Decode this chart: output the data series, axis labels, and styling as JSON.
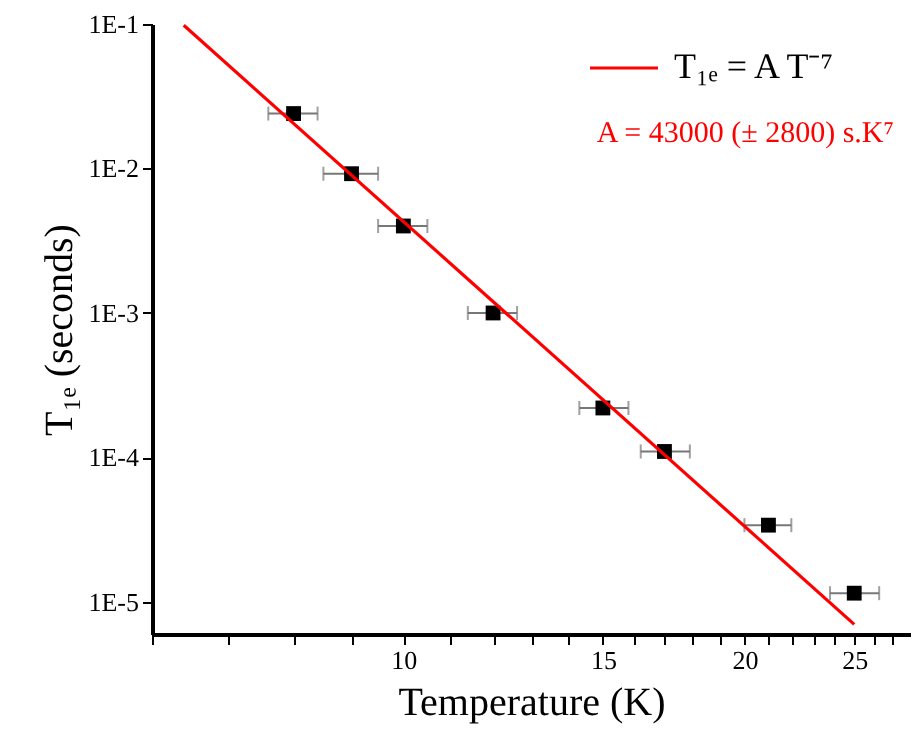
{
  "chart_data": {
    "type": "scatter",
    "xlabel": "Temperature (K)",
    "ylabel": "T₁ₑ (seconds)",
    "log": "xy",
    "grid": false,
    "legend": "top right",
    "xlim": [
      6,
      28
    ],
    "ylim": [
      6e-06,
      0.1
    ],
    "xticks": [
      {
        "value": 6,
        "label": null
      },
      {
        "value": 7,
        "label": null
      },
      {
        "value": 8,
        "label": null
      },
      {
        "value": 9,
        "label": null
      },
      10,
      {
        "value": 11,
        "label": null
      },
      {
        "value": 12,
        "label": null
      },
      {
        "value": 13,
        "label": null
      },
      {
        "value": 14,
        "label": null
      },
      15,
      {
        "value": 16,
        "label": null
      },
      {
        "value": 17,
        "label": null
      },
      {
        "value": 18,
        "label": null
      },
      {
        "value": 19,
        "label": null
      },
      20,
      {
        "value": 21,
        "label": null
      },
      {
        "value": 22,
        "label": null
      },
      {
        "value": 23,
        "label": null
      },
      {
        "value": 24,
        "label": null
      },
      25,
      {
        "value": 26,
        "label": null
      },
      {
        "value": 27,
        "label": null
      }
    ],
    "yticks": [
      {
        "value": 0.1,
        "label": "1E-1"
      },
      {
        "value": 0.01,
        "label": "1E-2"
      },
      {
        "value": 0.001,
        "label": "1E-3"
      },
      {
        "value": 0.0001,
        "label": "1E-4"
      },
      {
        "value": 1e-05,
        "label": "1E-5"
      }
    ],
    "series": [
      {
        "color": "#000000",
        "marker": "square",
        "x": [
          8,
          9,
          10,
          12,
          15,
          17,
          21,
          25
        ],
        "values": [
          0.024,
          0.0092,
          0.004,
          0.001,
          0.00022,
          0.00011,
          3.4e-05,
          1.15e-05
        ],
        "xerrors": [
          [
            7.6,
            8.4
          ],
          [
            8.5,
            9.5
          ],
          [
            9.5,
            10.5
          ],
          [
            11.4,
            12.6
          ],
          [
            14.3,
            15.8
          ],
          [
            16.2,
            17.9
          ],
          [
            20,
            22
          ],
          [
            23.8,
            26.3
          ]
        ]
      },
      {
        "type": "line",
        "marker": "none",
        "name": "T₁ₑ = A T⁻⁷",
        "color": "#ff0000",
        "x": [
          6.4,
          25
        ],
        "values": [
          0.098,
          7e-06
        ]
      }
    ],
    "annotations": [
      "A = 43000 (± 2800) s.K⁷"
    ]
  }
}
